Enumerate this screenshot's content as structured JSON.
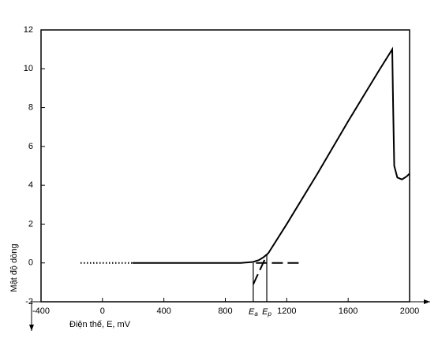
{
  "chart_data": {
    "type": "line",
    "x_label": "Điện thế, E, mV",
    "y_label": "Mật độ dòng",
    "xlim": [
      -400,
      2000
    ],
    "xticks": [
      -400,
      0,
      400,
      800,
      1200,
      1600,
      2000
    ],
    "ylim": [
      -2,
      12
    ],
    "yticks": [
      -2,
      0,
      2,
      4,
      6,
      8,
      10,
      12
    ],
    "grid": false,
    "series": [
      {
        "color": "#000000",
        "style": "solid",
        "x": [
          196,
          600,
          900,
          980,
          1020,
          1050,
          1080,
          1200,
          1400,
          1600,
          1700,
          1800,
          1887,
          1893,
          1900,
          1920,
          1950,
          1980,
          2000
        ],
        "values": [
          0,
          0,
          0,
          0.05,
          0.15,
          0.3,
          0.5,
          2.0,
          4.6,
          7.3,
          8.6,
          9.9,
          11,
          8,
          5,
          4.4,
          4.3,
          4.45,
          4.6
        ]
      },
      {
        "color": "#000000",
        "style": "dotted",
        "x": [
          -143,
          196
        ],
        "values": [
          0,
          0
        ]
      },
      {
        "color": "#000000",
        "style": "dashed",
        "x": [
          1000,
          1300
        ],
        "values": [
          0,
          0
        ]
      },
      {
        "color": "#000000",
        "style": "dashed",
        "x": [
          982,
          1070
        ],
        "values": [
          -1.1,
          0.4
        ]
      }
    ],
    "annotations": [
      {
        "symbol": "E",
        "subscript": "a",
        "x": 982,
        "y": 0
      },
      {
        "symbol": "E",
        "subscript": "p",
        "x": 1070,
        "y": 0.4
      }
    ]
  }
}
